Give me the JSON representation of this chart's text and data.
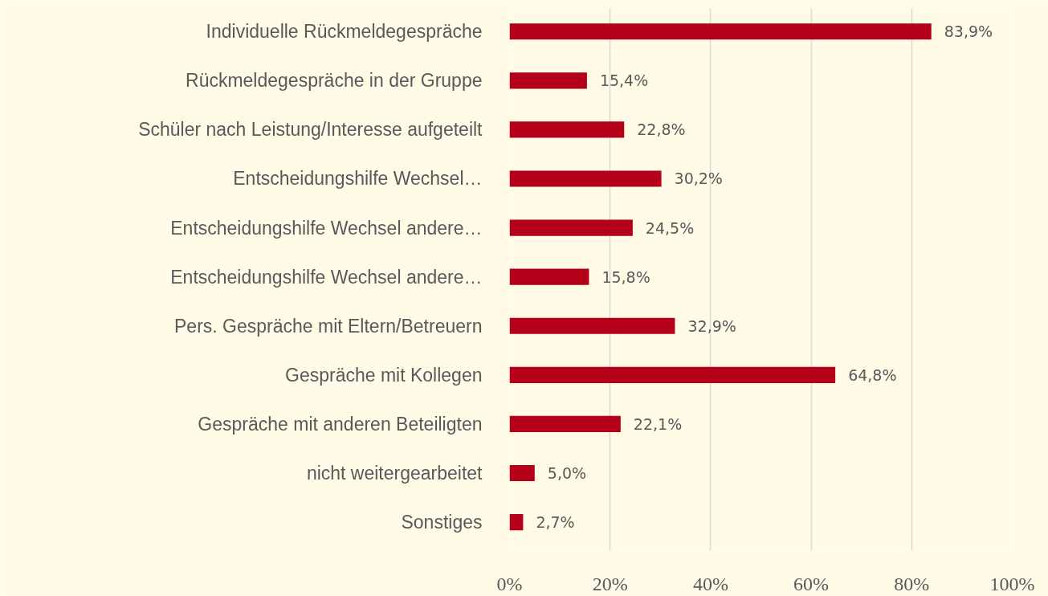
{
  "chart_data": {
    "type": "bar",
    "orientation": "horizontal",
    "categories": [
      "Individuelle Rückmeldegespräche",
      "Rückmeldegespräche in der Gruppe",
      "Schüler nach Leistung/Interesse aufgeteilt",
      "Entscheidungshilfe Wechsel…",
      "Entscheidungshilfe Wechsel andere…",
      "Entscheidungshilfe Wechsel andere…",
      "Pers. Gespräche mit Eltern/Betreuern",
      "Gespräche mit Kollegen",
      "Gespräche mit anderen Beteiligten",
      "nicht weitergearbeitet",
      "Sonstiges"
    ],
    "values": [
      83.9,
      15.4,
      22.8,
      30.2,
      24.5,
      15.8,
      32.9,
      64.8,
      22.1,
      5.0,
      2.7
    ],
    "value_labels": [
      "83,9%",
      "15,4%",
      "22,8%",
      "30,2%",
      "24,5%",
      "15,8%",
      "32,9%",
      "64,8%",
      "22,1%",
      "5,0%",
      "2,7%"
    ],
    "color": "#b5001a",
    "xlim": [
      0,
      100
    ],
    "xticks": [
      {
        "value": 0,
        "label": "0%"
      },
      {
        "value": 20,
        "label": "20%"
      },
      {
        "value": 40,
        "label": "40%"
      },
      {
        "value": 60,
        "label": "60%"
      },
      {
        "value": 80,
        "label": "80%"
      },
      {
        "value": 100,
        "label": "100%"
      }
    ],
    "grid": "x"
  }
}
